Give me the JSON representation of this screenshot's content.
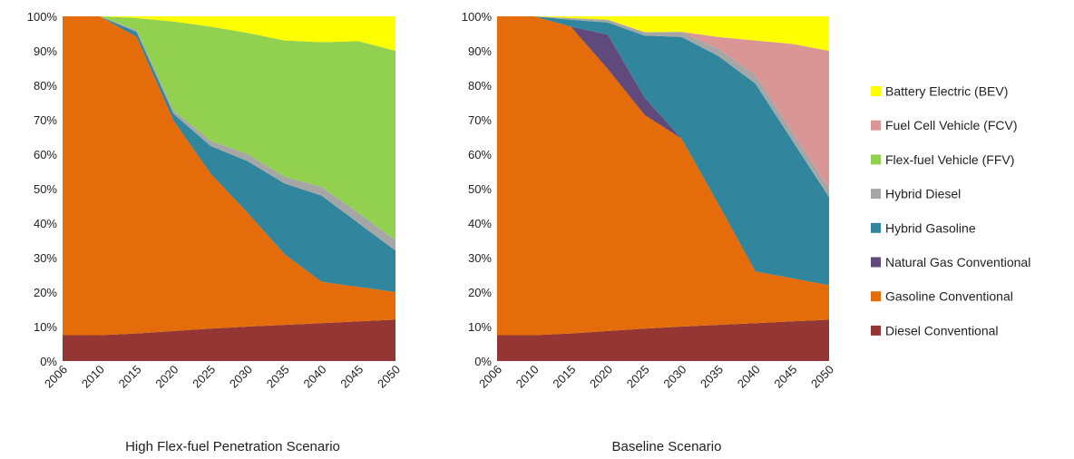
{
  "chart_data": [
    {
      "type": "area",
      "stacked": true,
      "title": "High Flex-fuel Penetration Scenario",
      "categories": [
        "2006",
        "2010",
        "2015",
        "2020",
        "2025",
        "2030",
        "2035",
        "2040",
        "2045",
        "2050"
      ],
      "ylim": [
        0,
        100
      ],
      "yticks": [
        "0%",
        "10%",
        "20%",
        "30%",
        "40%",
        "50%",
        "60%",
        "70%",
        "80%",
        "90%",
        "100%"
      ],
      "series": [
        {
          "name": "Diesel Conventional",
          "color": "#943634",
          "values": [
            7.5,
            7.5,
            8.0,
            8.7,
            9.4,
            10.0,
            10.5,
            11.0,
            11.5,
            12.0
          ]
        },
        {
          "name": "Gasoline Conventional",
          "color": "#E46C0A",
          "values": [
            92.5,
            92.5,
            86.0,
            61.0,
            45.0,
            33.0,
            20.5,
            12.0,
            10.0,
            8.0
          ]
        },
        {
          "name": "Natural Gas Conventional",
          "color": "#604A7B",
          "values": [
            0,
            0,
            0,
            0,
            0,
            0,
            0,
            0,
            0,
            0
          ]
        },
        {
          "name": "Hybrid Gasoline",
          "color": "#31859C",
          "values": [
            0,
            0,
            1.5,
            2.0,
            8.0,
            15.0,
            20.5,
            25.0,
            18.5,
            12.0
          ]
        },
        {
          "name": "Hybrid Diesel",
          "color": "#A6A6A6",
          "values": [
            0,
            0,
            0.5,
            1.0,
            1.5,
            2.0,
            2.0,
            2.5,
            3.0,
            3.0
          ]
        },
        {
          "name": "Flex-fuel Vehicle (FFV)",
          "color": "#92D050",
          "values": [
            0,
            0,
            3.5,
            25.8,
            33.1,
            35.2,
            39.5,
            42.0,
            49.8,
            55.0
          ]
        },
        {
          "name": "Fuel Cell Vehicle (FCV)",
          "color": "#D99694",
          "values": [
            0,
            0,
            0,
            0,
            0,
            0,
            0,
            0,
            0,
            0
          ]
        },
        {
          "name": "Battery Electric (BEV)",
          "color": "#FFFF00",
          "values": [
            0,
            0,
            0.5,
            1.5,
            3.0,
            4.8,
            7.0,
            7.5,
            7.2,
            10.0
          ]
        }
      ]
    },
    {
      "type": "area",
      "stacked": true,
      "title": "Baseline Scenario",
      "categories": [
        "2006",
        "2010",
        "2015",
        "2020",
        "2025",
        "2030",
        "2035",
        "2040",
        "2045",
        "2050"
      ],
      "ylim": [
        0,
        100
      ],
      "yticks": [
        "0%",
        "10%",
        "20%",
        "30%",
        "40%",
        "50%",
        "60%",
        "70%",
        "80%",
        "90%",
        "100%"
      ],
      "series": [
        {
          "name": "Diesel Conventional",
          "color": "#943634",
          "values": [
            7.5,
            7.5,
            8.0,
            8.7,
            9.4,
            10.0,
            10.5,
            11.0,
            11.5,
            12.0
          ]
        },
        {
          "name": "Gasoline Conventional",
          "color": "#E46C0A",
          "values": [
            92.5,
            92.5,
            89.0,
            76.0,
            62.0,
            54.5,
            35.0,
            15.0,
            12.5,
            10.0
          ]
        },
        {
          "name": "Natural Gas Conventional",
          "color": "#604A7B",
          "values": [
            0,
            0,
            0,
            10.0,
            5.0,
            0,
            0,
            0,
            0,
            0
          ]
        },
        {
          "name": "Hybrid Gasoline",
          "color": "#31859C",
          "values": [
            0,
            0,
            2.0,
            3.5,
            18.0,
            29.5,
            43.0,
            54.5,
            40.0,
            25.5
          ]
        },
        {
          "name": "Hybrid Diesel",
          "color": "#A6A6A6",
          "values": [
            0,
            0,
            0.5,
            0.8,
            1.0,
            1.5,
            2.0,
            2.5,
            2.5,
            2.5
          ]
        },
        {
          "name": "Flex-fuel Vehicle (FFV)",
          "color": "#92D050",
          "values": [
            0,
            0,
            0,
            0,
            0,
            0,
            0,
            0,
            0,
            0
          ]
        },
        {
          "name": "Fuel Cell Vehicle (FCV)",
          "color": "#D99694",
          "values": [
            0,
            0,
            0,
            0,
            0,
            0,
            3.5,
            10.0,
            25.5,
            40.0
          ]
        },
        {
          "name": "Battery Electric (BEV)",
          "color": "#FFFF00",
          "values": [
            0,
            0,
            0.5,
            1.0,
            4.6,
            4.5,
            6.0,
            7.0,
            8.0,
            10.0
          ]
        }
      ]
    }
  ],
  "legend": {
    "placement": "right",
    "items": [
      {
        "label": "Battery Electric (BEV)",
        "color": "#FFFF00"
      },
      {
        "label": "Fuel Cell Vehicle (FCV)",
        "color": "#D99694"
      },
      {
        "label": "Flex-fuel Vehicle (FFV)",
        "color": "#92D050"
      },
      {
        "label": "Hybrid Diesel",
        "color": "#A6A6A6"
      },
      {
        "label": "Hybrid Gasoline",
        "color": "#31859C"
      },
      {
        "label": "Natural Gas Conventional",
        "color": "#604A7B"
      },
      {
        "label": "Gasoline Conventional",
        "color": "#E46C0A"
      },
      {
        "label": "Diesel Conventional",
        "color": "#943634"
      }
    ]
  }
}
